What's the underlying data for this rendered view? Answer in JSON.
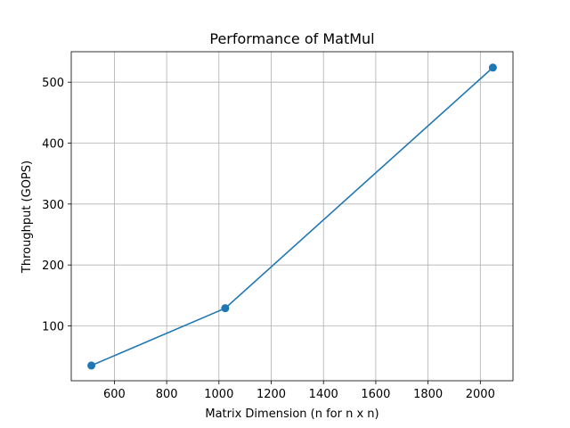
{
  "chart_data": {
    "type": "line",
    "title": "Performance of MatMul",
    "xlabel": "Matrix Dimension (n for n x n)",
    "ylabel": "Throughput (GOPS)",
    "xlim": [
      435,
      2125
    ],
    "ylim": [
      10,
      550
    ],
    "xticks": [
      600,
      800,
      1000,
      1200,
      1400,
      1600,
      1800,
      2000
    ],
    "yticks": [
      100,
      200,
      300,
      400,
      500
    ],
    "grid": true,
    "series": [
      {
        "color": "#1f77b4",
        "marker": "circle",
        "x": [
          512,
          1024,
          2048
        ],
        "y": [
          35,
          129,
          524
        ]
      }
    ]
  }
}
